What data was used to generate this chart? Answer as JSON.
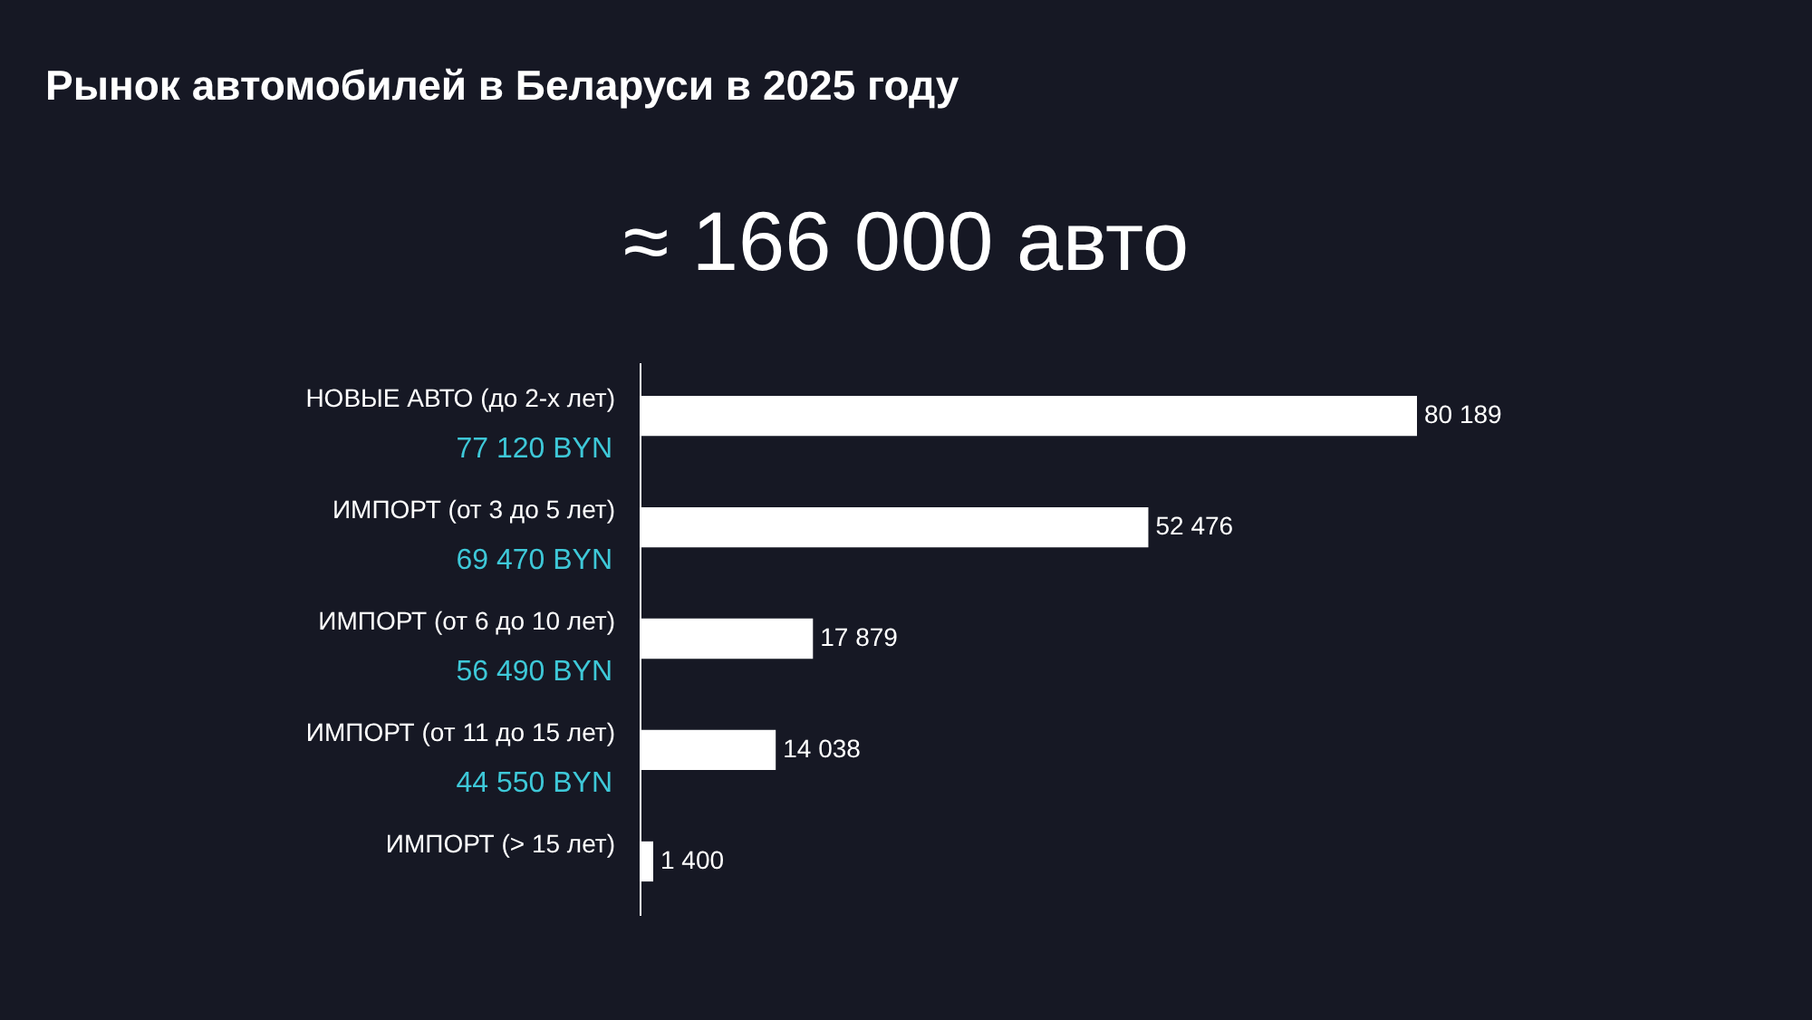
{
  "chart_data": {
    "type": "bar",
    "orientation": "horizontal",
    "title": "Рынок автомобилей в Беларуси в 2025 году",
    "subtitle": "≈ 166 000 авто",
    "categories": [
      "НОВЫЕ АВТО (до 2-х лет)",
      "ИМПОРТ (от 3 до 5 лет)",
      "ИМПОРТ (от 6 до 10 лет)",
      "ИМПОРТ (от 11 до 15 лет)",
      "ИМПОРТ (> 15 лет)"
    ],
    "values": [
      80189,
      52476,
      17879,
      14038,
      1400
    ],
    "value_labels": [
      "80 189",
      "52 476",
      "17 879",
      "14 038",
      "1 400"
    ],
    "color": "#ffffff",
    "annotations": [
      "77 120 BYN",
      "69 470 BYN",
      "56 490 BYN",
      "44 550 BYN"
    ]
  }
}
